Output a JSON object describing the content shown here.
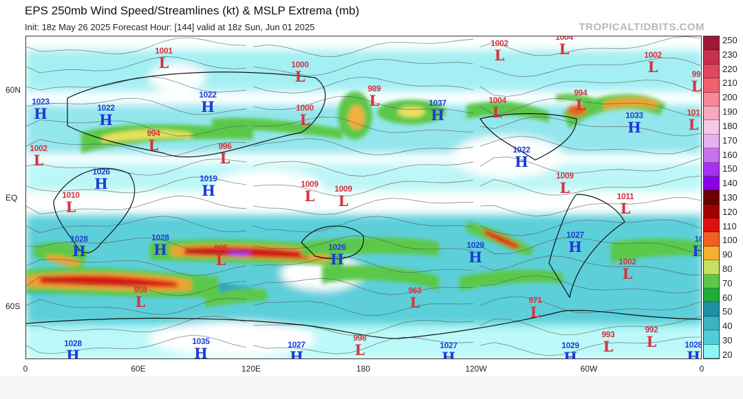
{
  "header": {
    "title": "EPS 250mb Wind Speed/Streamlines (kt) & MSLP Extrema (mb)",
    "subtitle": "Init: 18z May 26 2025   Forecast Hour: [144]   valid at 18z Sun, Jun 01 2025",
    "brand": "TROPICALTIDBITS.COM"
  },
  "axes": {
    "x_ticks": [
      "0",
      "60E",
      "120E",
      "180",
      "120W",
      "60W",
      "0"
    ],
    "y_ticks": [
      "60N",
      "EQ",
      "60S"
    ]
  },
  "colorbar": {
    "labels": [
      "250",
      "230",
      "220",
      "210",
      "200",
      "190",
      "180",
      "170",
      "160",
      "150",
      "140",
      "130",
      "120",
      "110",
      "100",
      "90",
      "80",
      "70",
      "60",
      "50",
      "40",
      "30",
      "20"
    ],
    "colors": [
      "#a01838",
      "#c83050",
      "#e04860",
      "#f06070",
      "#f88898",
      "#f8a8c0",
      "#f8c8e8",
      "#e8b0f0",
      "#c870f0",
      "#a830f0",
      "#8a00e8",
      "#6a0000",
      "#a00000",
      "#e01010",
      "#f06020",
      "#f5b030",
      "#c8e060",
      "#5cc84a",
      "#1fae3a",
      "#1f8fa3",
      "#3bb3c3",
      "#4fcdd8",
      "#8ff5f5"
    ]
  },
  "systems": [
    {
      "letter": "L",
      "value": "1001"
    },
    {
      "letter": "L",
      "value": "1000"
    },
    {
      "letter": "L",
      "value": "989"
    },
    {
      "letter": "L",
      "value": "1000"
    },
    {
      "letter": "L",
      "value": "994"
    },
    {
      "letter": "L",
      "value": "996"
    },
    {
      "letter": "L",
      "value": "1002"
    },
    {
      "letter": "L",
      "value": "1010"
    },
    {
      "letter": "L",
      "value": "1009"
    },
    {
      "letter": "L",
      "value": "1009"
    },
    {
      "letter": "L",
      "value": "1002"
    },
    {
      "letter": "L",
      "value": "1004"
    },
    {
      "letter": "L",
      "value": "1002"
    },
    {
      "letter": "L",
      "value": "99"
    },
    {
      "letter": "L",
      "value": "1004"
    },
    {
      "letter": "L",
      "value": "994"
    },
    {
      "letter": "L",
      "value": "101"
    },
    {
      "letter": "L",
      "value": "1009"
    },
    {
      "letter": "L",
      "value": "1011"
    },
    {
      "letter": "L",
      "value": "995"
    },
    {
      "letter": "L",
      "value": "958"
    },
    {
      "letter": "L",
      "value": "963"
    },
    {
      "letter": "L",
      "value": "971"
    },
    {
      "letter": "L",
      "value": "1002"
    },
    {
      "letter": "L",
      "value": "998"
    },
    {
      "letter": "L",
      "value": "993"
    },
    {
      "letter": "L",
      "value": "992"
    },
    {
      "letter": "H",
      "value": "1023"
    },
    {
      "letter": "H",
      "value": "1022"
    },
    {
      "letter": "H",
      "value": "1022"
    },
    {
      "letter": "H",
      "value": "1026"
    },
    {
      "letter": "H",
      "value": "1019"
    },
    {
      "letter": "H",
      "value": "1037"
    },
    {
      "letter": "H",
      "value": "1033"
    },
    {
      "letter": "H",
      "value": "1022"
    },
    {
      "letter": "H",
      "value": "1028"
    },
    {
      "letter": "H",
      "value": "1028"
    },
    {
      "letter": "H",
      "value": "1026"
    },
    {
      "letter": "H",
      "value": "1029"
    },
    {
      "letter": "H",
      "value": "1027"
    },
    {
      "letter": "H",
      "value": "10"
    },
    {
      "letter": "H",
      "value": "1028"
    },
    {
      "letter": "H",
      "value": "1035"
    },
    {
      "letter": "H",
      "value": "1027"
    },
    {
      "letter": "H",
      "value": "1027"
    },
    {
      "letter": "H",
      "value": "1029"
    },
    {
      "letter": "H",
      "value": "1028"
    }
  ]
}
